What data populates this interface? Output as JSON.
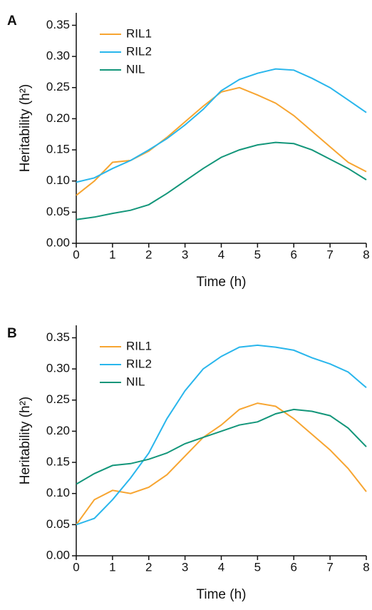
{
  "chart_data": [
    {
      "type": "line",
      "panel": "A",
      "xlabel": "Time (h)",
      "ylabel": "Heritability (h²)",
      "x": [
        0,
        0.5,
        1,
        1.5,
        2,
        2.5,
        3,
        3.5,
        4,
        4.5,
        5,
        5.5,
        6,
        6.5,
        7,
        7.5,
        8
      ],
      "series": [
        {
          "name": "RIL1",
          "color": "#f7a531",
          "values": [
            0.077,
            0.1,
            0.13,
            0.133,
            0.148,
            0.17,
            0.195,
            0.22,
            0.243,
            0.25,
            0.238,
            0.225,
            0.205,
            0.18,
            0.155,
            0.13,
            0.115
          ]
        },
        {
          "name": "RIL2",
          "color": "#29b6ec",
          "values": [
            0.098,
            0.105,
            0.12,
            0.133,
            0.15,
            0.168,
            0.19,
            0.215,
            0.245,
            0.263,
            0.273,
            0.28,
            0.278,
            0.265,
            0.25,
            0.23,
            0.21
          ]
        },
        {
          "name": "NIL",
          "color": "#13967a",
          "values": [
            0.038,
            0.042,
            0.048,
            0.053,
            0.062,
            0.08,
            0.1,
            0.12,
            0.138,
            0.15,
            0.158,
            0.162,
            0.16,
            0.15,
            0.135,
            0.12,
            0.102
          ]
        }
      ],
      "xlim": [
        0,
        8
      ],
      "ylim": [
        0,
        0.37
      ],
      "xticks": [
        0,
        1,
        2,
        3,
        4,
        5,
        6,
        7,
        8
      ],
      "yticks": [
        {
          "value": 0,
          "label": "0.00"
        },
        0.05,
        {
          "value": 0.1,
          "label": "0.10"
        },
        0.15,
        {
          "value": 0.2,
          "label": "0.20"
        },
        0.25,
        {
          "value": 0.3,
          "label": "0.30"
        },
        0.35
      ],
      "legend": "upper left"
    },
    {
      "type": "line",
      "panel": "B",
      "xlabel": "Time (h)",
      "ylabel": "Heritability (h²)",
      "x": [
        0,
        0.5,
        1,
        1.5,
        2,
        2.5,
        3,
        3.5,
        4,
        4.5,
        5,
        5.5,
        6,
        6.5,
        7,
        7.5,
        8
      ],
      "series": [
        {
          "name": "RIL1",
          "color": "#f7a531",
          "values": [
            0.05,
            0.09,
            0.105,
            0.1,
            0.11,
            0.13,
            0.16,
            0.19,
            0.21,
            0.235,
            0.245,
            0.24,
            0.22,
            0.195,
            0.17,
            0.14,
            0.103
          ]
        },
        {
          "name": "RIL2",
          "color": "#29b6ec",
          "values": [
            0.05,
            0.06,
            0.09,
            0.125,
            0.165,
            0.22,
            0.265,
            0.3,
            0.32,
            0.335,
            0.338,
            0.335,
            0.33,
            0.318,
            0.308,
            0.295,
            0.27
          ]
        },
        {
          "name": "NIL",
          "color": "#13967a",
          "values": [
            0.115,
            0.132,
            0.145,
            0.148,
            0.155,
            0.165,
            0.18,
            0.19,
            0.2,
            0.21,
            0.215,
            0.228,
            0.235,
            0.232,
            0.225,
            0.205,
            0.175
          ]
        }
      ],
      "xlim": [
        0,
        8
      ],
      "ylim": [
        0,
        0.37
      ],
      "xticks": [
        0,
        1,
        2,
        3,
        4,
        5,
        6,
        7,
        8
      ],
      "yticks": [
        {
          "value": 0,
          "label": "0.00"
        },
        0.05,
        {
          "value": 0.1,
          "label": "0.10"
        },
        0.15,
        {
          "value": 0.2,
          "label": "0.20"
        },
        0.25,
        {
          "value": 0.3,
          "label": "0.30"
        },
        0.35
      ],
      "legend": "upper left"
    }
  ]
}
